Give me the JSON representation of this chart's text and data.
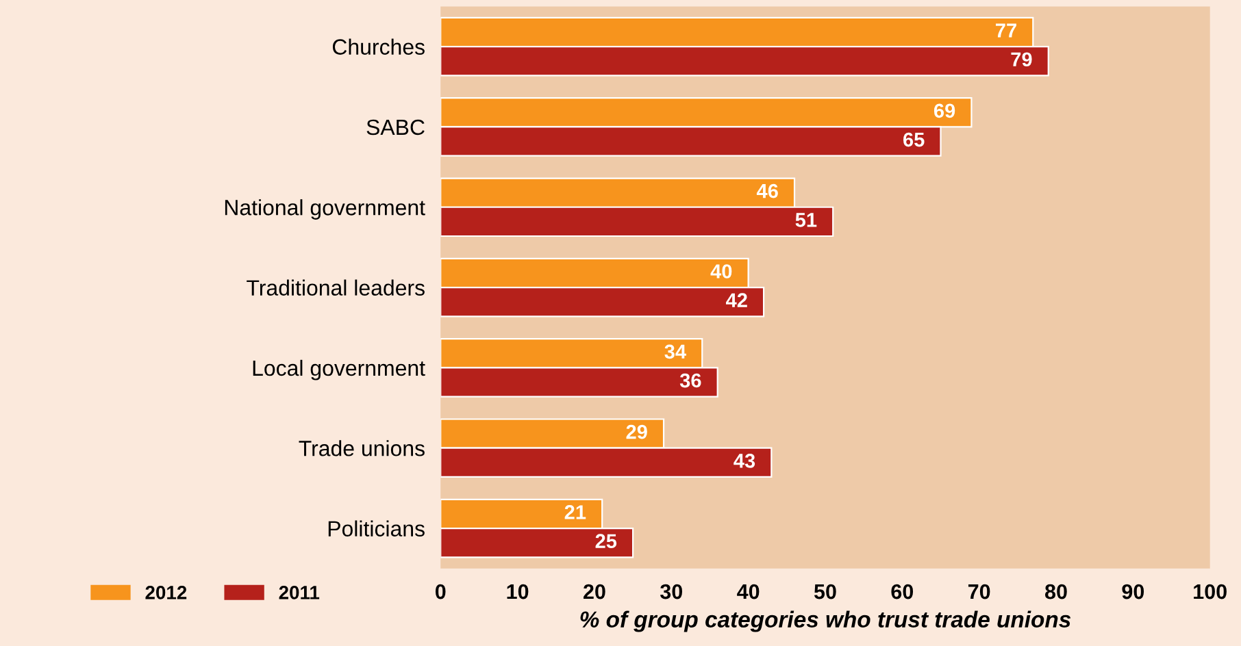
{
  "chart_data": {
    "type": "bar",
    "orientation": "horizontal",
    "xlabel": "% of group categories who trust trade unions",
    "categories": [
      "Churches",
      "SABC",
      "National government",
      "Traditional leaders",
      "Local government",
      "Trade unions",
      "Politicians"
    ],
    "series": [
      {
        "name": "2012",
        "color": "#f7941d",
        "values": [
          77,
          69,
          46,
          40,
          34,
          29,
          21
        ]
      },
      {
        "name": "2011",
        "color": "#b5211b",
        "values": [
          79,
          65,
          51,
          42,
          36,
          43,
          25
        ]
      }
    ],
    "xlim": [
      0,
      100
    ],
    "xticks": [
      0,
      10,
      20,
      30,
      40,
      50,
      60,
      70,
      80,
      90,
      100
    ],
    "data_labels": true,
    "grid": false,
    "legend": "bottom left"
  }
}
